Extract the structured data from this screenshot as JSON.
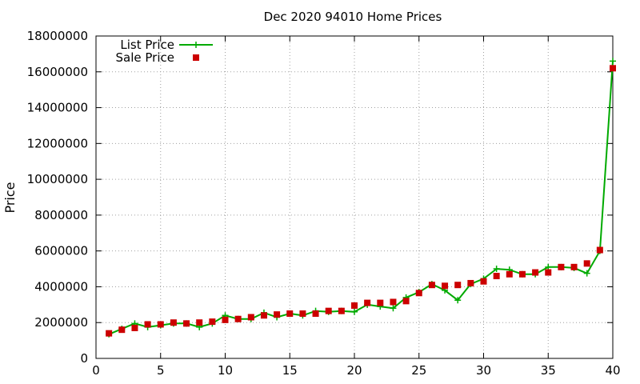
{
  "chart_data": {
    "type": "line",
    "title": "Dec 2020 94010 Home Prices",
    "xlabel": "",
    "ylabel": "Price",
    "xlim": [
      0,
      40
    ],
    "ylim": [
      0,
      18000000
    ],
    "xticks": [
      "0",
      "5",
      "10",
      "15",
      "20",
      "25",
      "30",
      "35",
      "40"
    ],
    "yticks": [
      "0",
      "2000000",
      "4000000",
      "6000000",
      "8000000",
      "10000000",
      "12000000",
      "14000000",
      "16000000",
      "18000000"
    ],
    "grid": true,
    "legend_position": "top-left",
    "x": [
      1,
      2,
      3,
      4,
      5,
      6,
      7,
      8,
      9,
      10,
      11,
      12,
      13,
      14,
      15,
      16,
      17,
      18,
      19,
      20,
      21,
      22,
      23,
      24,
      25,
      26,
      27,
      28,
      29,
      30,
      31,
      32,
      33,
      34,
      35,
      36,
      37,
      38,
      39,
      40
    ],
    "series": [
      {
        "name": "List Price",
        "style": "line-with-plus-markers",
        "color": "#00aa00",
        "values": [
          1350000,
          1650000,
          1950000,
          1750000,
          1850000,
          1950000,
          1950000,
          1750000,
          1950000,
          2400000,
          2200000,
          2200000,
          2550000,
          2300000,
          2500000,
          2400000,
          2650000,
          2600000,
          2650000,
          2600000,
          3000000,
          2900000,
          2800000,
          3400000,
          3700000,
          4150000,
          3800000,
          3250000,
          4150000,
          4450000,
          5000000,
          4950000,
          4700000,
          4700000,
          5100000,
          5100000,
          5050000,
          4750000,
          6000000,
          16600000
        ]
      },
      {
        "name": "Sale Price",
        "style": "square-markers",
        "color": "#cc0000",
        "values": [
          1400000,
          1600000,
          1700000,
          1900000,
          1900000,
          2000000,
          1950000,
          2000000,
          2050000,
          2150000,
          2200000,
          2300000,
          2400000,
          2450000,
          2500000,
          2500000,
          2500000,
          2650000,
          2650000,
          2950000,
          3100000,
          3100000,
          3150000,
          3200000,
          3650000,
          4100000,
          4050000,
          4100000,
          4200000,
          4300000,
          4600000,
          4700000,
          4700000,
          4800000,
          4800000,
          5100000,
          5100000,
          5300000,
          6050000,
          16200000
        ]
      }
    ]
  }
}
